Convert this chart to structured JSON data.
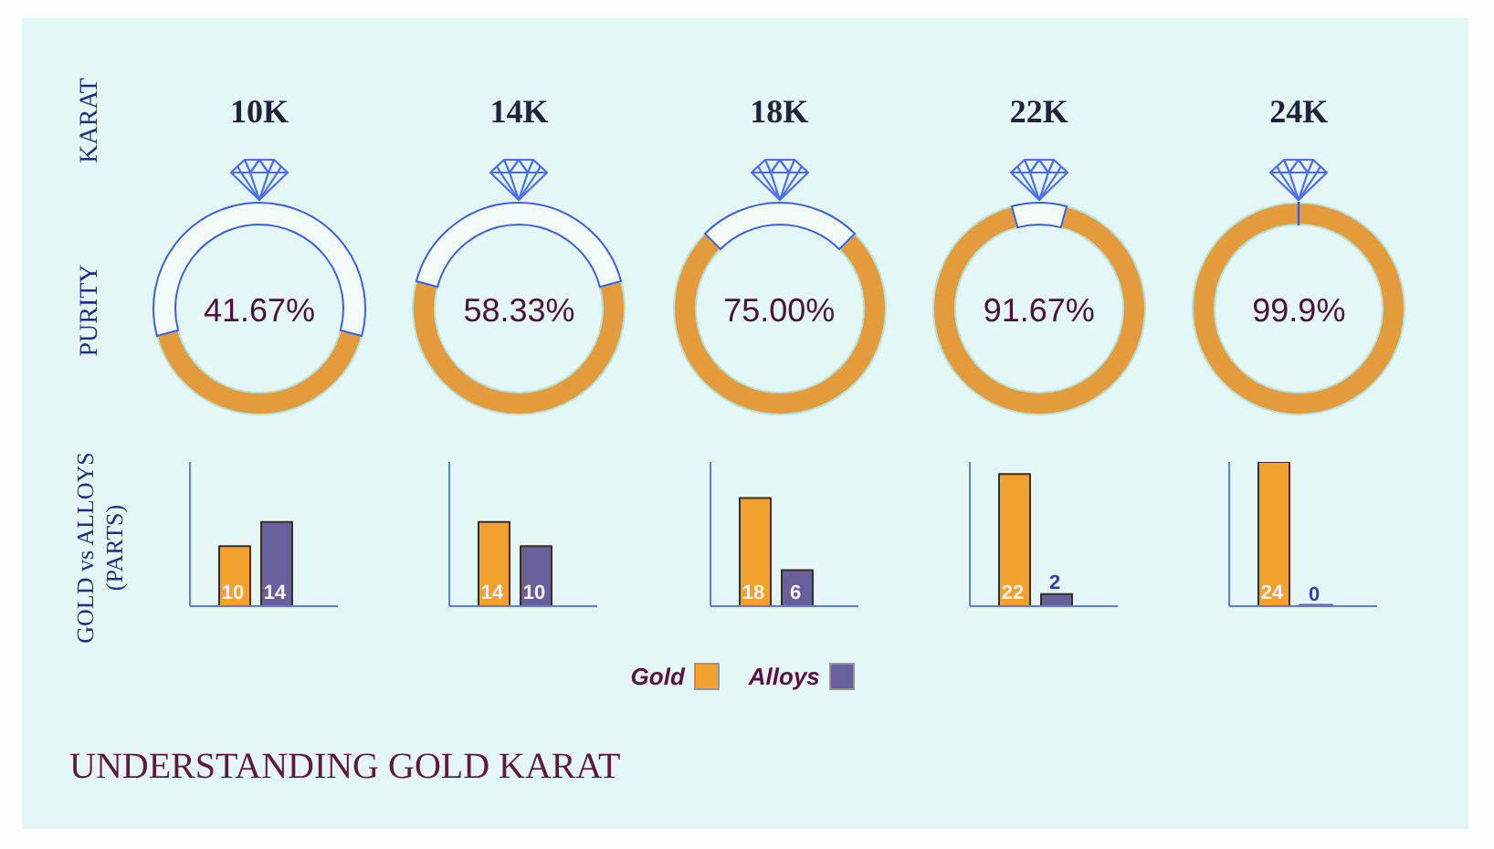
{
  "chart_data": [
    {
      "type": "donut",
      "title": "10K",
      "categories": [
        null,
        null
      ],
      "values": [
        41.67,
        58.33
      ],
      "colors": [
        "#e39b3b",
        "#f3fbfb"
      ],
      "value_labels": [
        "41.67%",
        null
      ],
      "annotations": [
        "KARAT",
        "PURITY"
      ]
    },
    {
      "type": "donut",
      "title": "14K",
      "categories": [
        null,
        null
      ],
      "values": [
        58.33,
        41.67
      ],
      "colors": [
        "#e39b3b",
        "#f3fbfb"
      ],
      "value_labels": [
        "58.33%",
        null
      ]
    },
    {
      "type": "donut",
      "title": "18K",
      "categories": [
        null,
        null
      ],
      "values": [
        75,
        25
      ],
      "colors": [
        "#e39b3b",
        "#f3fbfb"
      ],
      "value_labels": [
        "75.00%",
        null
      ]
    },
    {
      "type": "donut",
      "title": "22K",
      "categories": [
        null,
        null
      ],
      "values": [
        91.67,
        8.33
      ],
      "colors": [
        "#e39b3b",
        "#f3fbfb"
      ],
      "value_labels": [
        "91.67%",
        null
      ]
    },
    {
      "type": "donut",
      "title": "24K",
      "categories": [
        null,
        null
      ],
      "values": [
        99.9,
        0.1
      ],
      "colors": [
        "#e39b3b",
        "#f3fbfb"
      ],
      "value_labels": [
        "99.9%",
        null
      ]
    },
    {
      "type": "bar",
      "categories": [
        null
      ],
      "series": [
        {
          "color": "#f1a12e",
          "values": [
            10
          ]
        },
        {
          "color": "#67609a",
          "values": [
            14
          ]
        }
      ],
      "data_labels": true,
      "tick_labels": false,
      "ylabel": "GOLD vs ALLOYS (PARTS)"
    },
    {
      "type": "bar",
      "categories": [
        null
      ],
      "series": [
        {
          "color": "#f1a12e",
          "values": [
            14
          ]
        },
        {
          "color": "#67609a",
          "values": [
            10
          ]
        }
      ],
      "data_labels": true,
      "tick_labels": false
    },
    {
      "type": "bar",
      "categories": [
        null
      ],
      "series": [
        {
          "name": "Gold",
          "color": "#f1a12e",
          "values": [
            18
          ]
        },
        {
          "name": "Alloys",
          "color": "#67609a",
          "values": [
            6
          ]
        }
      ],
      "data_labels": true,
      "tick_labels": false,
      "legend": "bottom"
    },
    {
      "type": "bar",
      "categories": [
        null
      ],
      "series": [
        {
          "color": "#f1a12e",
          "values": [
            22
          ]
        },
        {
          "color": "#67609a",
          "values": [
            2
          ]
        }
      ],
      "data_labels": true,
      "tick_labels": false
    },
    {
      "type": "bar",
      "categories": [
        null
      ],
      "series": [
        {
          "color": "#f1a12e",
          "values": [
            24
          ]
        },
        {
          "color": "#67609a",
          "values": [
            0
          ]
        }
      ],
      "data_labels": true,
      "tick_labels": false
    },
    {
      "type": "other",
      "title": "UNDERSTANDING GOLD KARAT"
    }
  ]
}
